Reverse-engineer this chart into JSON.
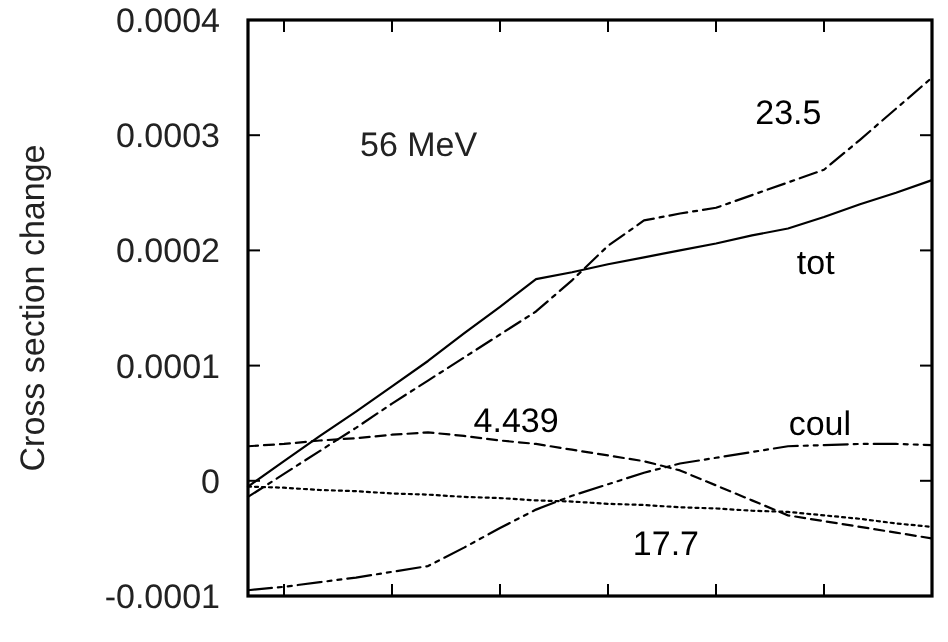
{
  "chart_data": {
    "type": "line",
    "ylabel": "Cross section change",
    "categories": [
      null,
      null,
      null,
      null,
      null,
      null,
      null,
      null,
      null,
      null,
      null,
      null,
      null,
      null,
      null,
      null,
      null,
      null,
      null,
      null
    ],
    "ylim": [
      -0.0001,
      0.0004
    ],
    "yticks": [
      -0.0001,
      0,
      0.0001,
      0.0002,
      0.0003,
      0.0004
    ],
    "marker": "none",
    "series": [
      {
        "name": "tot",
        "color": "#000000",
        "line_style": "solid",
        "values": [
          -5e-06,
          1.7e-05,
          3.9e-05,
          6e-05,
          8.2e-05,
          0.000104,
          0.000128,
          0.000151,
          0.000175,
          0.000181,
          0.000188,
          0.000194,
          0.0002,
          0.000206,
          0.000213,
          0.000219,
          0.000229,
          0.00024,
          0.00025,
          0.000261
        ]
      },
      {
        "name": "23.5",
        "color": "#000000",
        "line_style": "dashdot",
        "values": [
          -1.4e-05,
          6e-06,
          2.6e-05,
          4.6e-05,
          6.7e-05,
          8.7e-05,
          0.000107,
          0.000127,
          0.000147,
          0.000174,
          0.000204,
          0.000226,
          0.000232,
          0.000237,
          0.000248,
          0.000259,
          0.00027,
          0.000296,
          0.000323,
          0.00035
        ]
      },
      {
        "name": "4.439",
        "color": "#000000",
        "line_style": "dashed",
        "values": [
          3e-05,
          3.2e-05,
          3.5e-05,
          3.7e-05,
          4e-05,
          4.2e-05,
          3.9e-05,
          3.5e-05,
          3.2e-05,
          2.7e-05,
          2.2e-05,
          1.7e-05,
          9e-06,
          -4e-06,
          -1.7e-05,
          -3e-05,
          -3.5e-05,
          -4e-05,
          -4.5e-05,
          -5e-05
        ]
      },
      {
        "name": "17.7",
        "color": "#000000",
        "line_style": "dotted",
        "values": [
          -5e-06,
          -6e-06,
          -8e-06,
          -9e-06,
          -1.1e-05,
          -1.2e-05,
          -1.4e-05,
          -1.5e-05,
          -1.7e-05,
          -1.8e-05,
          -2e-05,
          -2.1e-05,
          -2.3e-05,
          -2.4e-05,
          -2.6e-05,
          -2.7e-05,
          -3e-05,
          -3.3e-05,
          -3.7e-05,
          -4e-05
        ]
      },
      {
        "name": "coul",
        "color": "#000000",
        "line_style": "dashdotdot",
        "values": [
          -9.5e-05,
          -9.2e-05,
          -8.8e-05,
          -8.4e-05,
          -7.9e-05,
          -7.4e-05,
          -5.8e-05,
          -4.1e-05,
          -2.5e-05,
          -1.3e-05,
          -3e-06,
          7e-06,
          1.5e-05,
          2e-05,
          2.5e-05,
          3e-05,
          3.1e-05,
          3.2e-05,
          3.2e-05,
          3.1e-05
        ]
      }
    ],
    "annotations": [
      "56 MeV"
    ]
  }
}
